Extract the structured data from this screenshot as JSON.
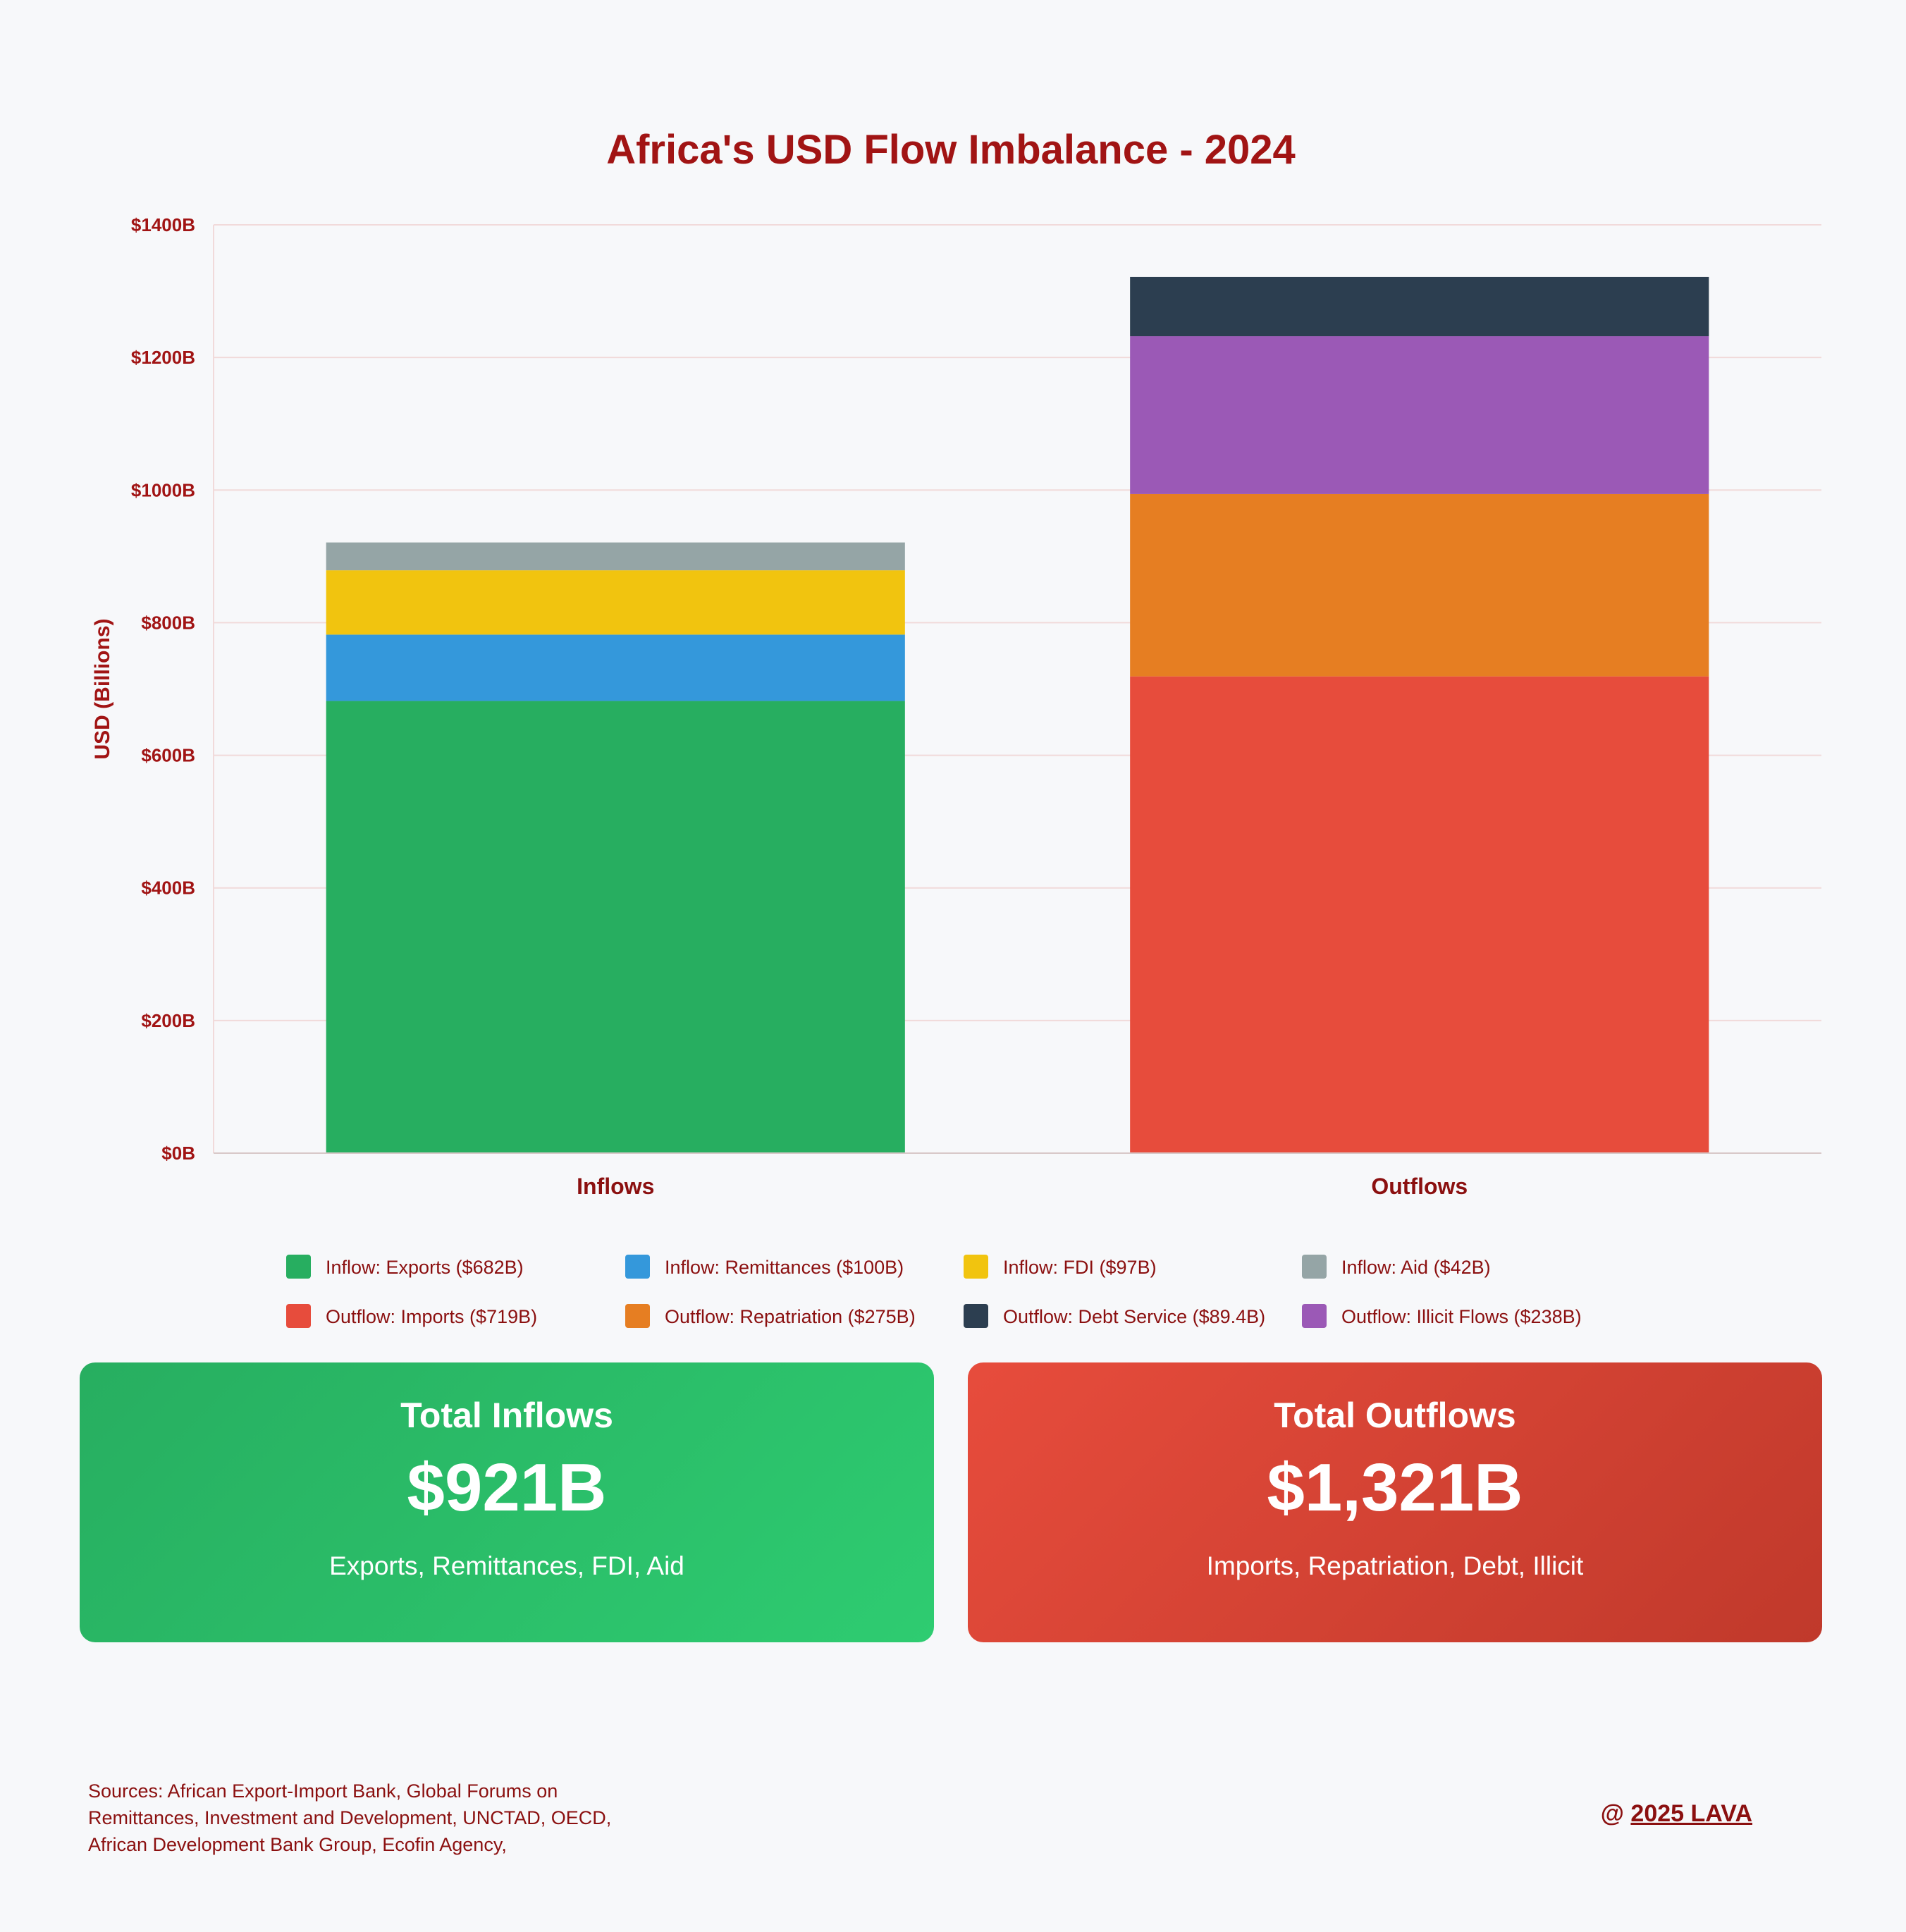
{
  "chart_data": {
    "type": "bar",
    "stacked": true,
    "title": "Africa's USD Flow Imbalance - 2024",
    "ylabel": "USD (Billions)",
    "xlabel": "",
    "categories": [
      "Inflows",
      "Outflows"
    ],
    "ylim": [
      0,
      1400
    ],
    "yticks": [
      0,
      200,
      400,
      600,
      800,
      1000,
      1200,
      1400
    ],
    "ytick_labels": [
      "$0B",
      "$200B",
      "$400B",
      "$600B",
      "$800B",
      "$1000B",
      "$1200B",
      "$1400B"
    ],
    "grid": true,
    "legend_position": "bottom",
    "series": [
      {
        "name": "Inflow: Exports ($682B)",
        "values": [
          682,
          0
        ],
        "color": "#27ae60"
      },
      {
        "name": "Inflow: Remittances ($100B)",
        "values": [
          100,
          0
        ],
        "color": "#3498db"
      },
      {
        "name": "Inflow: FDI ($97B)",
        "values": [
          97,
          0
        ],
        "color": "#f1c40f"
      },
      {
        "name": "Inflow: Aid ($42B)",
        "values": [
          42,
          0
        ],
        "color": "#95a5a6"
      },
      {
        "name": "Outflow: Imports ($719B)",
        "values": [
          0,
          719
        ],
        "color": "#e74c3c"
      },
      {
        "name": "Outflow: Repatriation ($275B)",
        "values": [
          0,
          275
        ],
        "color": "#e67e22"
      },
      {
        "name": "Outflow: Debt Service ($89.4B)",
        "values": [
          0,
          89.4
        ],
        "color": "#2c3e50"
      },
      {
        "name": "Outflow: Illicit Flows ($238B)",
        "values": [
          0,
          238
        ],
        "color": "#9b59b6"
      }
    ],
    "stack_order": [
      [
        0,
        1,
        2,
        3
      ],
      [
        4,
        5,
        7,
        6
      ]
    ]
  },
  "summary": {
    "inflows": {
      "title": "Total Inflows",
      "value": "$921B",
      "description": "Exports, Remittances, FDI, Aid"
    },
    "outflows": {
      "title": "Total Outflows",
      "value": "$1,321B",
      "description": "Imports, Repatriation, Debt, Illicit"
    }
  },
  "footer": {
    "sources": "Sources: African Export-Import Bank, Global Forums on Remittances, Investment and Development, UNCTAD, OECD, African Development Bank Group, Ecofin Agency,",
    "credit_prefix": "@ ",
    "credit_link": "2025 LAVA"
  },
  "colors": {
    "title": "#a11414",
    "gridline": "#f1dada",
    "background": "#f7f8fa"
  }
}
